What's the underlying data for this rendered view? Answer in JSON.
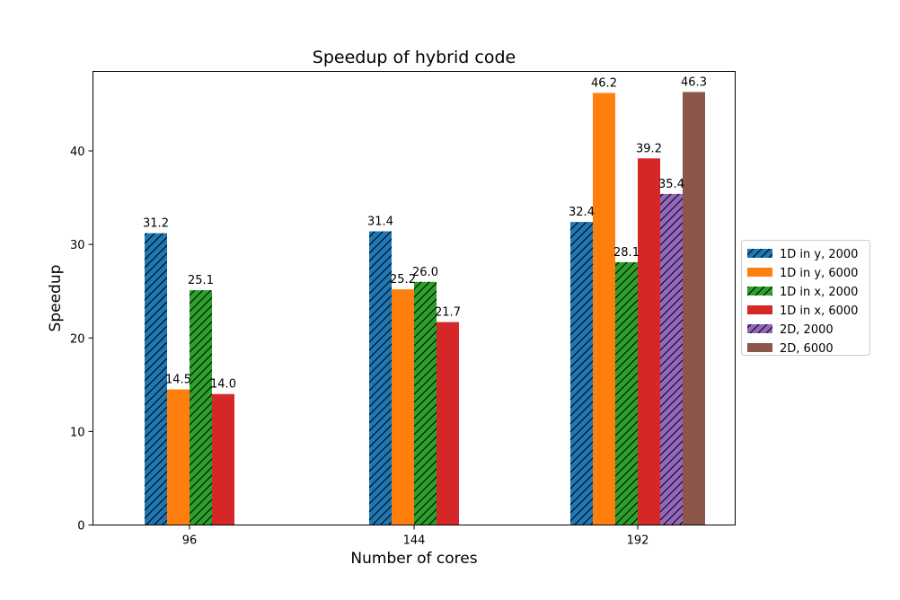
{
  "chart_data": {
    "type": "bar",
    "title": "Speedup of hybrid code",
    "xlabel": "Number of cores",
    "ylabel": "Speedup",
    "categories": [
      "96",
      "144",
      "192"
    ],
    "ylim": [
      0,
      48.5
    ],
    "yticks": [
      0,
      10,
      20,
      30,
      40
    ],
    "grid": false,
    "legend_position": "right, outside plot",
    "series": [
      {
        "name": "1D in y, 2000",
        "color": "#1f77b4",
        "hatch": true,
        "values": [
          31.2,
          31.4,
          32.4
        ],
        "labels": [
          "31.2",
          "31.4",
          "32.4"
        ]
      },
      {
        "name": "1D in y, 6000",
        "color": "#ff7f0e",
        "hatch": false,
        "values": [
          14.5,
          25.2,
          46.2
        ],
        "labels": [
          "14.5",
          "25.2",
          "46.2"
        ]
      },
      {
        "name": "1D in x, 2000",
        "color": "#2ca02c",
        "hatch": true,
        "values": [
          25.1,
          26.0,
          28.1
        ],
        "labels": [
          "25.1",
          "26.0",
          "28.1"
        ]
      },
      {
        "name": "1D in x, 6000",
        "color": "#d62728",
        "hatch": false,
        "values": [
          14.0,
          21.7,
          39.2
        ],
        "labels": [
          "14.0",
          "21.7",
          "39.2"
        ]
      },
      {
        "name": "2D, 2000",
        "color": "#9467bd",
        "hatch": true,
        "values": [
          null,
          null,
          35.4
        ],
        "labels": [
          null,
          null,
          "35.4"
        ]
      },
      {
        "name": "2D, 6000",
        "color": "#8c564b",
        "hatch": false,
        "values": [
          null,
          null,
          46.3
        ],
        "labels": [
          null,
          null,
          "46.3"
        ]
      }
    ]
  }
}
